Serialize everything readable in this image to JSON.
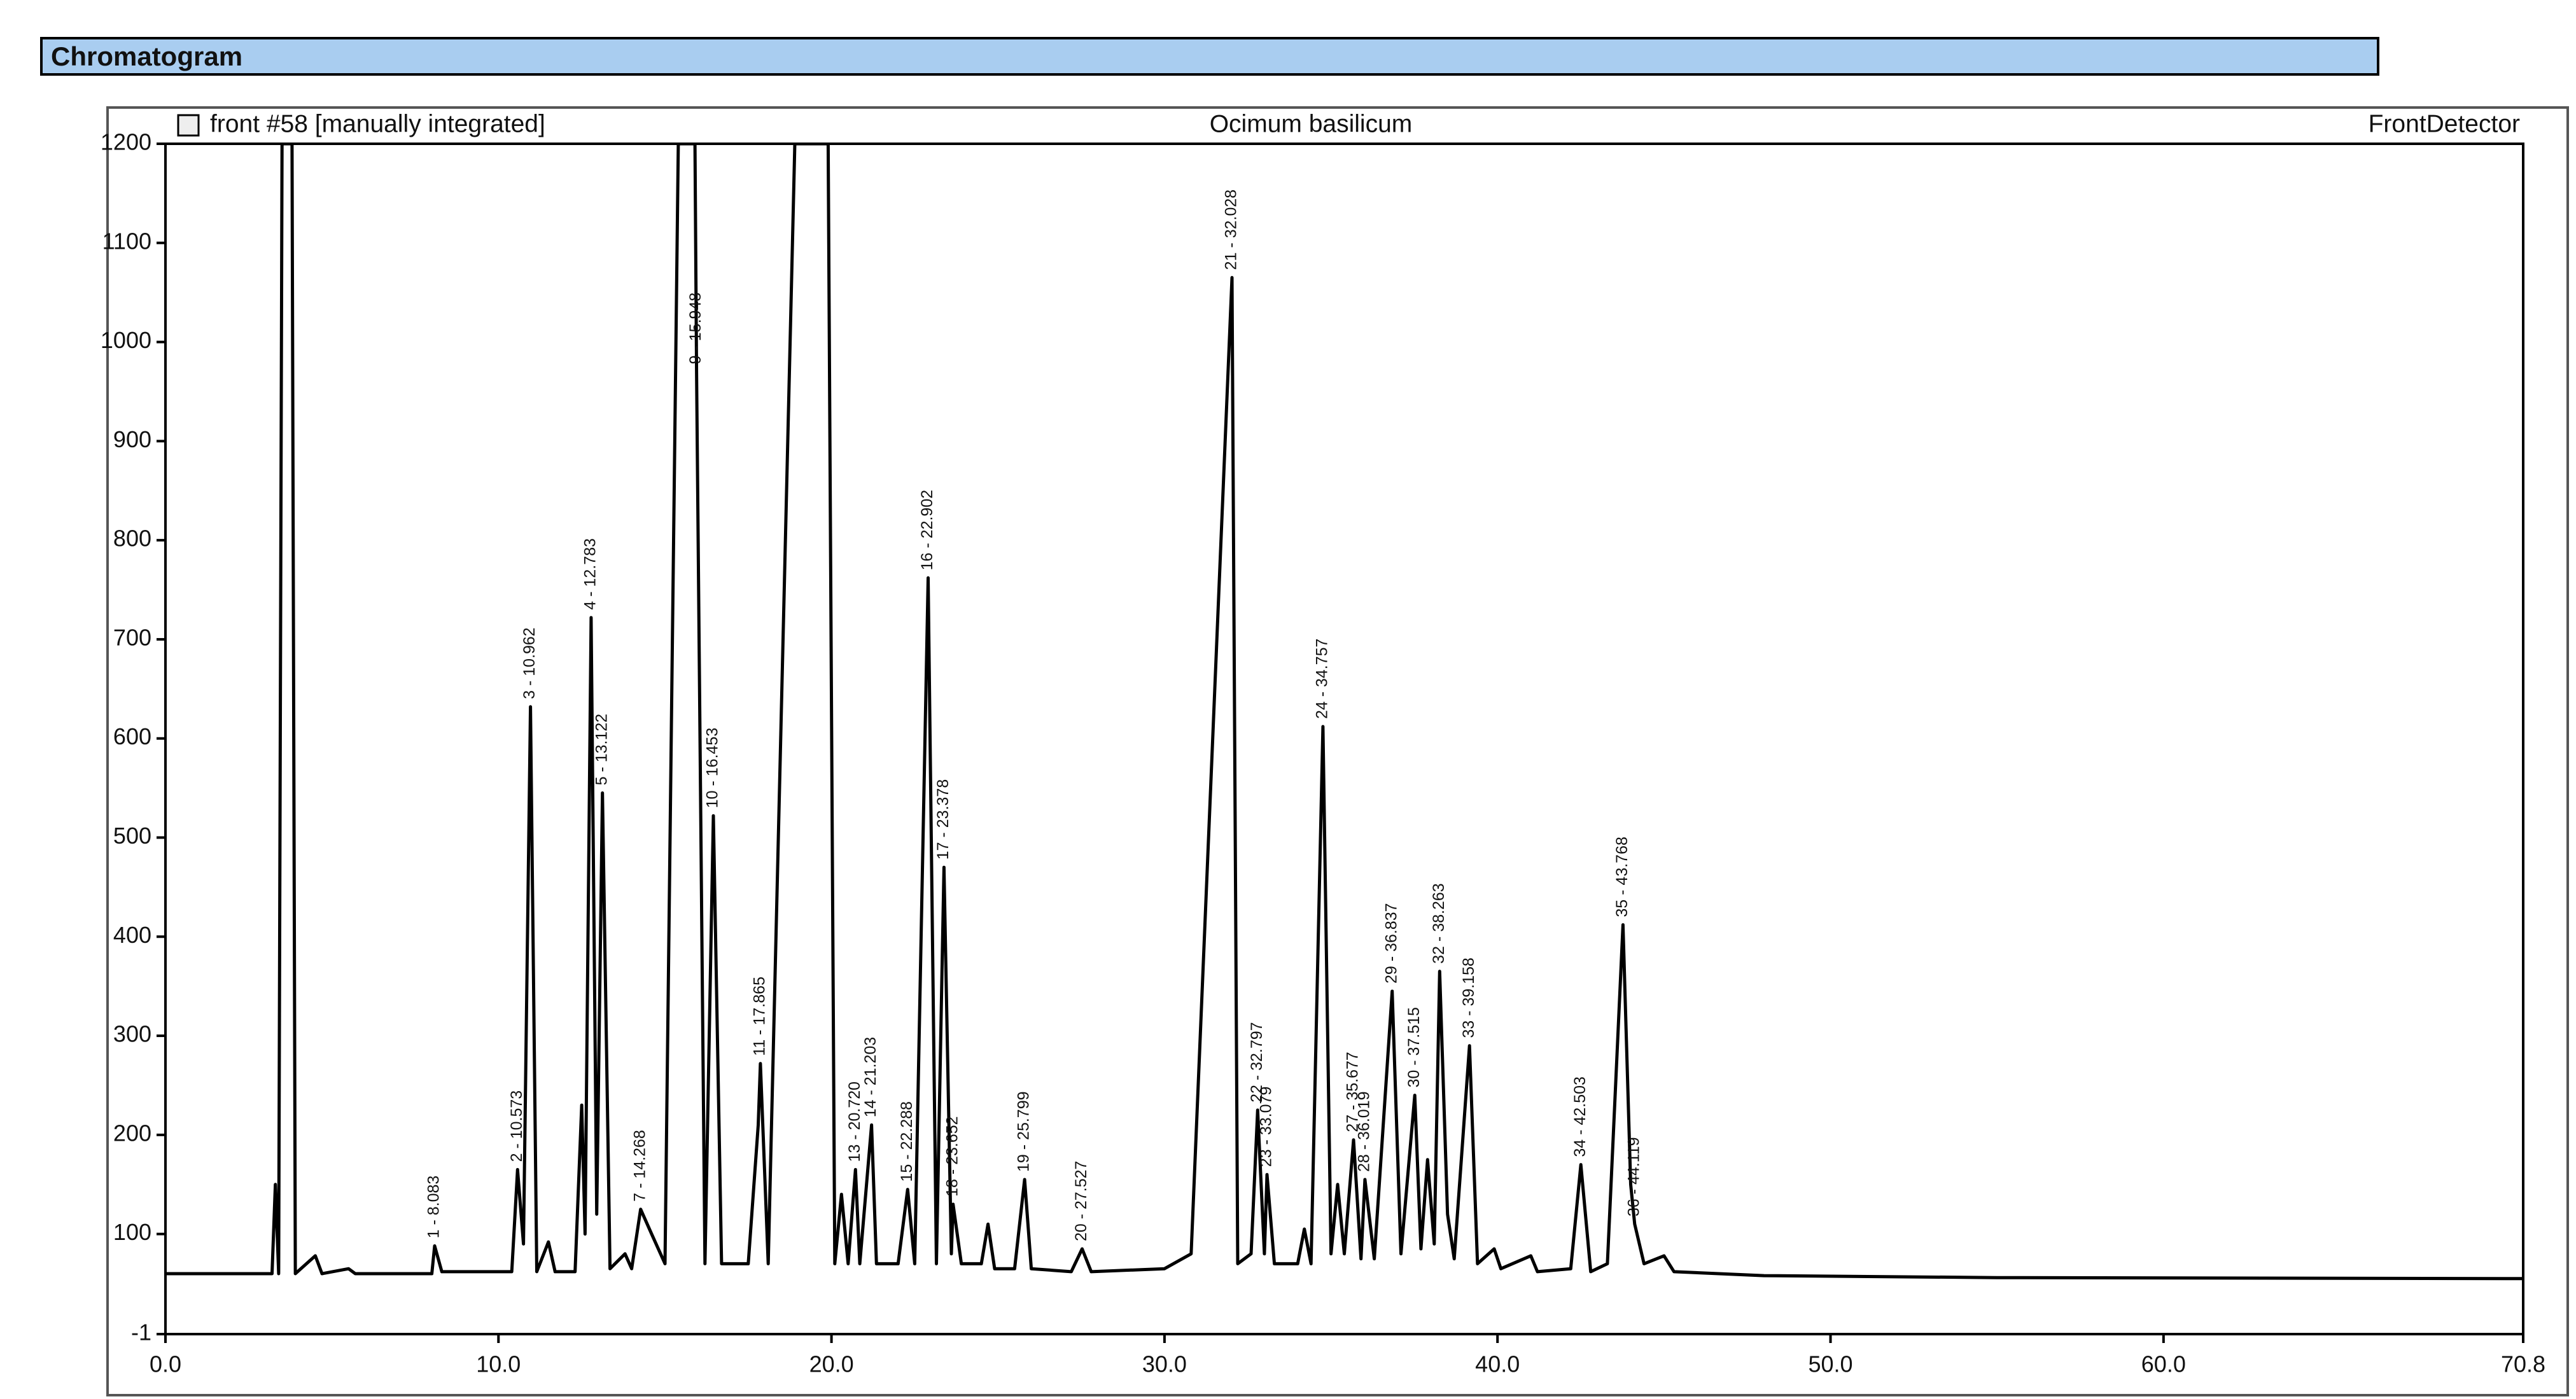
{
  "header": {
    "title": "Chromatogram"
  },
  "chart_data": {
    "type": "line",
    "run_label": "front #58 [manually integrated]",
    "title": "Ocimum basilicum",
    "detector": "FrontDetector",
    "color": "#000000",
    "xlim": [
      0,
      70.8
    ],
    "ylim": [
      -1,
      1200
    ],
    "xticks": [
      {
        "value": 0,
        "label": "0.0"
      },
      {
        "value": 10,
        "label": "10.0"
      },
      {
        "value": 20,
        "label": "20.0"
      },
      {
        "value": 30,
        "label": "30.0"
      },
      {
        "value": 40,
        "label": "40.0"
      },
      {
        "value": 50,
        "label": "50.0"
      },
      {
        "value": 60,
        "label": "60.0"
      },
      70.8
    ],
    "yticks": [
      -1,
      100,
      200,
      300,
      400,
      500,
      600,
      700,
      800,
      900,
      1000,
      1100,
      1200
    ],
    "x": [
      0,
      3.2,
      3.3,
      3.4,
      3.5,
      3.8,
      3.9,
      4.5,
      4.7,
      5.5,
      5.7,
      8.0,
      8.083,
      8.3,
      10.4,
      10.573,
      10.75,
      10.962,
      11.15,
      11.5,
      11.7,
      12.3,
      12.5,
      12.6,
      12.783,
      12.95,
      13.122,
      13.35,
      13.8,
      14.0,
      14.268,
      14.6,
      15.0,
      15.4,
      15.9,
      15.948,
      16.2,
      16.453,
      16.7,
      17.5,
      17.8,
      17.865,
      18.1,
      18.9,
      19.9,
      20.1,
      20.3,
      20.5,
      20.72,
      20.85,
      21.203,
      21.35,
      22.0,
      22.288,
      22.5,
      22.902,
      23.15,
      23.378,
      23.6,
      23.652,
      23.9,
      24.5,
      24.7,
      24.9,
      25.5,
      25.799,
      26.0,
      27.2,
      27.527,
      27.8,
      30.0,
      30.8,
      32.028,
      32.2,
      32.6,
      32.797,
      33.0,
      33.079,
      33.3,
      34.0,
      34.2,
      34.4,
      34.757,
      35.0,
      35.2,
      35.4,
      35.677,
      35.9,
      36.019,
      36.3,
      36.837,
      37.1,
      37.515,
      37.7,
      37.9,
      38.1,
      38.263,
      38.5,
      38.7,
      39.158,
      39.4,
      39.9,
      40.1,
      41.0,
      41.2,
      42.2,
      42.503,
      42.8,
      43.3,
      43.768,
      44.0,
      44.119,
      44.4,
      45.0,
      45.3,
      48,
      55,
      70.8
    ],
    "values": [
      60,
      60,
      150,
      60,
      1200,
      1200,
      60,
      78,
      60,
      65,
      60,
      60,
      88,
      62,
      62,
      165,
      90,
      632,
      62,
      92,
      62,
      62,
      230,
      100,
      722,
      120,
      545,
      65,
      80,
      65,
      125,
      100,
      70,
      1200,
      1200,
      970,
      70,
      522,
      70,
      70,
      210,
      272,
      70,
      1200,
      1200,
      70,
      140,
      70,
      165,
      70,
      210,
      70,
      70,
      145,
      70,
      762,
      70,
      470,
      80,
      130,
      70,
      70,
      110,
      65,
      65,
      155,
      65,
      62,
      85,
      62,
      65,
      80,
      1065,
      70,
      80,
      225,
      80,
      160,
      70,
      70,
      105,
      70,
      612,
      80,
      150,
      80,
      195,
      75,
      155,
      75,
      345,
      80,
      240,
      85,
      175,
      90,
      365,
      120,
      75,
      290,
      70,
      85,
      65,
      78,
      62,
      65,
      170,
      62,
      70,
      412,
      150,
      110,
      70,
      78,
      62,
      58,
      56,
      55
    ],
    "annotations": [
      {
        "text": "1 - 8.083",
        "x": 8.083,
        "y": 88
      },
      {
        "text": "2 - 10.573",
        "x": 10.573,
        "y": 165
      },
      {
        "text": "3 - 10.962",
        "x": 10.962,
        "y": 632
      },
      {
        "text": "4 - 12.783",
        "x": 12.783,
        "y": 722
      },
      {
        "text": "5 - 13.122",
        "x": 13.122,
        "y": 545
      },
      {
        "text": "7 - 14.268",
        "x": 14.268,
        "y": 125
      },
      {
        "text": "9 - 15.948",
        "x": 15.948,
        "y": 970
      },
      {
        "text": "10 - 16.453",
        "x": 16.453,
        "y": 522
      },
      {
        "text": "11 - 17.865",
        "x": 17.865,
        "y": 272
      },
      {
        "text": "13 - 20.720",
        "x": 20.72,
        "y": 165
      },
      {
        "text": "14 - 21.203",
        "x": 21.203,
        "y": 210
      },
      {
        "text": "15 - 22.288",
        "x": 22.288,
        "y": 145
      },
      {
        "text": "16 - 22.902",
        "x": 22.902,
        "y": 762
      },
      {
        "text": "17 - 23.378",
        "x": 23.378,
        "y": 470
      },
      {
        "text": "18 - 23.652",
        "x": 23.652,
        "y": 130
      },
      {
        "text": "19 - 25.799",
        "x": 25.799,
        "y": 155
      },
      {
        "text": "20 - 27.527",
        "x": 27.527,
        "y": 85
      },
      {
        "text": "21 - 32.028",
        "x": 32.028,
        "y": 1065
      },
      {
        "text": "22 - 32.797",
        "x": 32.797,
        "y": 225
      },
      {
        "text": "23 - 33.079",
        "x": 33.079,
        "y": 160
      },
      {
        "text": "24 - 34.757",
        "x": 34.757,
        "y": 612
      },
      {
        "text": "27 - 35.677",
        "x": 35.677,
        "y": 195
      },
      {
        "text": "28 - 36.019",
        "x": 36.019,
        "y": 155
      },
      {
        "text": "29 - 36.837",
        "x": 36.837,
        "y": 345
      },
      {
        "text": "30 - 37.515",
        "x": 37.515,
        "y": 240
      },
      {
        "text": "32 - 38.263",
        "x": 38.263,
        "y": 365
      },
      {
        "text": "33 - 39.158",
        "x": 39.158,
        "y": 290
      },
      {
        "text": "34 - 42.503",
        "x": 42.503,
        "y": 170
      },
      {
        "text": "35 - 43.768",
        "x": 43.768,
        "y": 412
      },
      {
        "text": "36 - 44.119",
        "x": 44.119,
        "y": 110
      }
    ]
  }
}
